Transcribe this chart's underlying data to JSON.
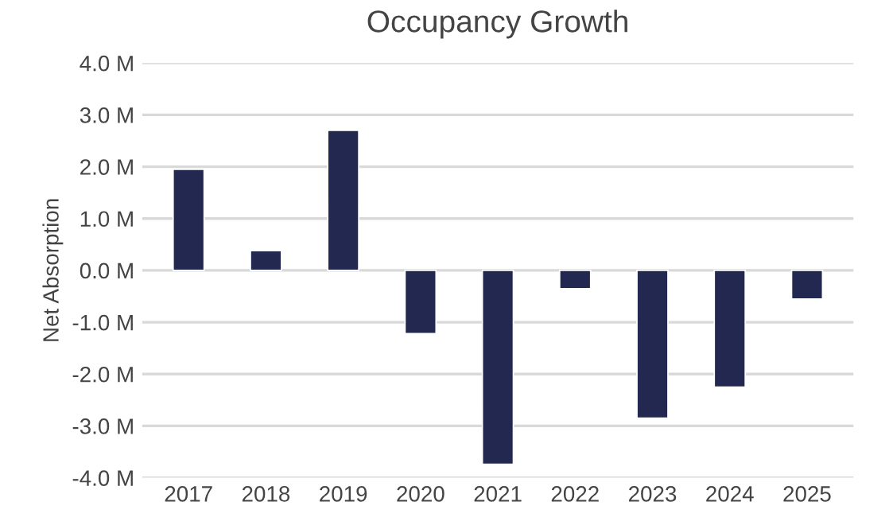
{
  "chart_data": {
    "type": "bar",
    "title": "Occupancy Growth",
    "ylabel": "Net Absorption",
    "categories": [
      "2017",
      "2018",
      "2019",
      "2020",
      "2021",
      "2022",
      "2023",
      "2024",
      "2025"
    ],
    "values": [
      1.95,
      0.38,
      2.7,
      -1.22,
      -3.74,
      -0.35,
      -2.85,
      -2.25,
      -0.55
    ],
    "color": "#22284f",
    "ylim": [
      -4,
      4
    ],
    "yticks": [
      {
        "value": -4,
        "label": "-4.0 M"
      },
      {
        "value": -3,
        "label": "-3.0 M"
      },
      {
        "value": -2,
        "label": "-2.0 M"
      },
      {
        "value": -1,
        "label": "-1.0 M"
      },
      {
        "value": 0,
        "label": "0.0 M"
      },
      {
        "value": 1,
        "label": "1.0 M"
      },
      {
        "value": 2,
        "label": "2.0 M"
      },
      {
        "value": 3,
        "label": "3.0 M"
      },
      {
        "value": 4,
        "label": "4.0 M"
      }
    ],
    "grid": "y",
    "legend": false
  }
}
